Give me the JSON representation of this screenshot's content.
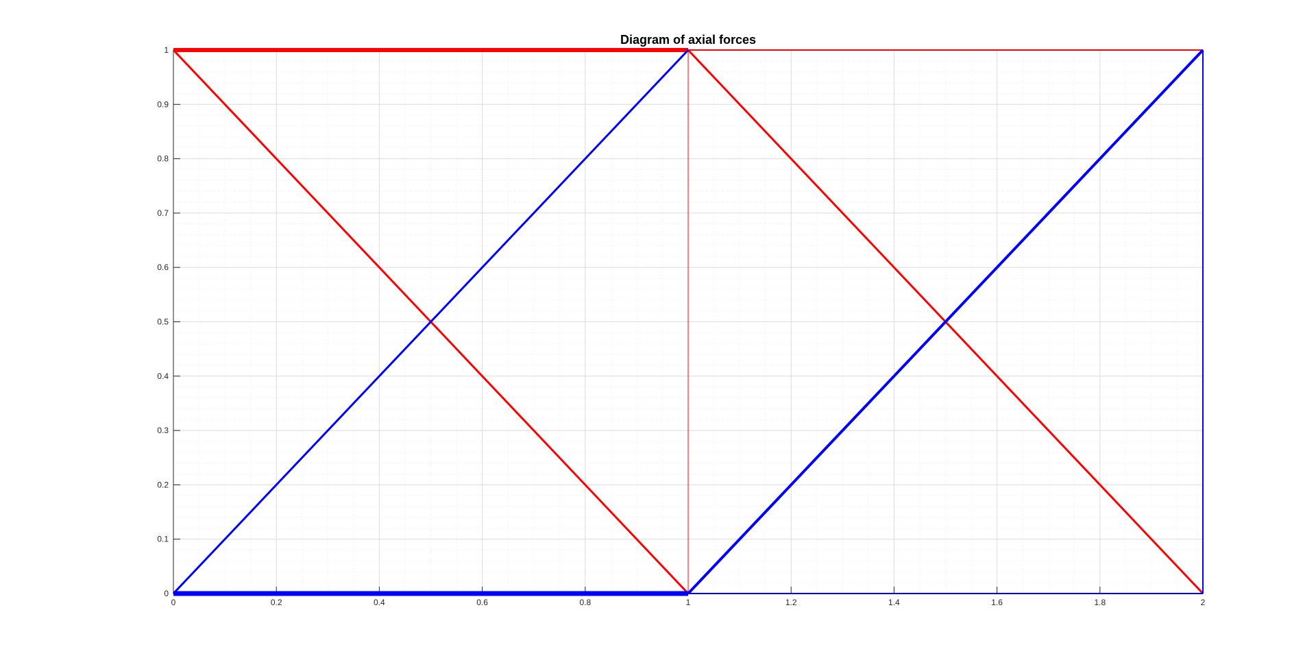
{
  "chart_data": {
    "type": "line",
    "title": "Diagram of axial forces",
    "xlabel": "",
    "ylabel": "",
    "xlim": [
      0,
      2
    ],
    "ylim": [
      0,
      1
    ],
    "x_ticks": [
      0,
      0.2,
      0.4,
      0.6,
      0.8,
      1,
      1.2,
      1.4,
      1.6,
      1.8,
      2
    ],
    "x_tick_labels": [
      "0",
      "0.2",
      "0.4",
      "0.6",
      "0.8",
      "1",
      "1.2",
      "1.4",
      "1.6",
      "1.8",
      "2"
    ],
    "y_ticks": [
      0,
      0.1,
      0.2,
      0.3,
      0.4,
      0.5,
      0.6,
      0.7,
      0.8,
      0.9,
      1
    ],
    "y_tick_labels": [
      "0",
      "0.1",
      "0.2",
      "0.3",
      "0.4",
      "0.5",
      "0.6",
      "0.7",
      "0.8",
      "0.9",
      "1"
    ],
    "grid": true,
    "minor_grid": true,
    "colors": {
      "tension": "#ff0000",
      "compression": "#0000ff",
      "axes": "#262626",
      "grid": "#dcdcdc",
      "minor_grid": "#ebebeb"
    },
    "members": [
      {
        "x": [
          0,
          1
        ],
        "y": [
          1,
          1
        ],
        "color": "#ff0000",
        "weight": 6
      },
      {
        "x": [
          1,
          2
        ],
        "y": [
          1,
          1
        ],
        "color": "#ff0000",
        "weight": 2
      },
      {
        "x": [
          0,
          1
        ],
        "y": [
          1,
          0
        ],
        "color": "#ff0000",
        "weight": 3
      },
      {
        "x": [
          1,
          2
        ],
        "y": [
          1,
          0
        ],
        "color": "#ff0000",
        "weight": 3
      },
      {
        "x": [
          1,
          1
        ],
        "y": [
          0,
          1
        ],
        "color": "#ff0000",
        "weight": 1
      },
      {
        "x": [
          0,
          1
        ],
        "y": [
          0,
          1
        ],
        "color": "#0000ff",
        "weight": 3
      },
      {
        "x": [
          1,
          2
        ],
        "y": [
          0,
          1
        ],
        "color": "#0000ff",
        "weight": 4
      },
      {
        "x": [
          0,
          1
        ],
        "y": [
          0,
          0
        ],
        "color": "#0000ff",
        "weight": 7
      },
      {
        "x": [
          1,
          2
        ],
        "y": [
          0,
          0
        ],
        "color": "#0000ff",
        "weight": 2
      },
      {
        "x": [
          2,
          2
        ],
        "y": [
          0,
          1
        ],
        "color": "#0000ff",
        "weight": 2
      }
    ]
  }
}
